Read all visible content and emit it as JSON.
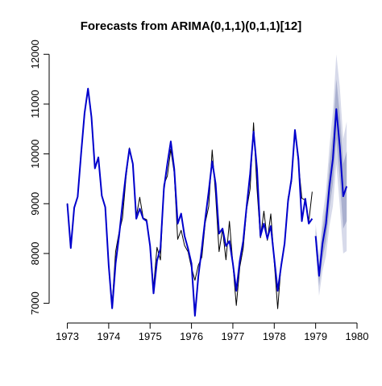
{
  "chart_data": {
    "type": "line",
    "title": "Forecasts from ARIMA(0,1,1)(0,1,1)[12]",
    "xlabel": "",
    "ylabel": "",
    "xlim": [
      1972.6,
      1980
    ],
    "ylim": [
      6750,
      12150
    ],
    "x_ticks": [
      1973,
      1974,
      1975,
      1976,
      1977,
      1978,
      1979,
      1980
    ],
    "y_ticks": [
      7000,
      8000,
      9000,
      10000,
      11000,
      12000
    ],
    "grid": false,
    "legend": "none",
    "series": [
      {
        "role": "observed",
        "color": "#000000",
        "start": 1973,
        "frequency": 12,
        "values": [
          9007,
          8106,
          8928,
          9137,
          10017,
          10826,
          11317,
          10744,
          9713,
          9938,
          9161,
          8927,
          7750,
          6981,
          8038,
          8422,
          8714,
          9512,
          10120,
          9823,
          8743,
          9129,
          8710,
          8680,
          8162,
          7306,
          8124,
          7870,
          9387,
          9556,
          10093,
          9620,
          8285,
          8466,
          8160,
          8034,
          7717,
          7461,
          7767,
          7925,
          8623,
          8945,
          10078,
          9179,
          8037,
          8488,
          7874,
          8647,
          7792,
          6957,
          7726,
          8106,
          8890,
          9299,
          10625,
          9302,
          8314,
          8850,
          8265,
          8796,
          7836,
          6892,
          7791,
          8192,
          9115,
          9434,
          10484,
          9827,
          9110,
          9070,
          8633,
          9240
        ]
      },
      {
        "role": "fitted",
        "color": "#0000cc",
        "start": 1973,
        "frequency": 12,
        "values": [
          9000,
          8110,
          8920,
          9140,
          10010,
          10820,
          11310,
          10740,
          9710,
          9930,
          9160,
          8930,
          7760,
          6900,
          7800,
          8350,
          9000,
          9600,
          10100,
          9800,
          8700,
          8900,
          8700,
          8650,
          8150,
          7200,
          7850,
          8100,
          9300,
          9800,
          10250,
          9700,
          8600,
          8800,
          8350,
          8100,
          7800,
          6750,
          7550,
          8100,
          8700,
          9250,
          9850,
          9400,
          8400,
          8500,
          8150,
          8250,
          7800,
          7250,
          7850,
          8250,
          8950,
          9600,
          10450,
          9700,
          8350,
          8600,
          8300,
          8550,
          7900,
          7250,
          7750,
          8200,
          9050,
          9500,
          10480,
          9900,
          8650,
          9100,
          8600,
          8700
        ]
      },
      {
        "role": "forecast",
        "color": "#0000cc",
        "start": 1979,
        "frequency": 12,
        "values": [
          8350,
          7550,
          8200,
          8600,
          9350,
          9900,
          10900,
          10150,
          9150,
          9350
        ]
      }
    ],
    "intervals": [
      {
        "level": "80%",
        "color": "#aab0cf",
        "lower": [
          8200,
          7350,
          7900,
          8250,
          8900,
          9400,
          10300,
          9500,
          8500,
          8650
        ],
        "upper": [
          8500,
          7750,
          8500,
          8950,
          9800,
          10400,
          11500,
          10800,
          9800,
          10050
        ]
      },
      {
        "level": "95%",
        "color": "#d7daea",
        "lower": [
          8100,
          7150,
          7650,
          7950,
          8550,
          8950,
          9800,
          8950,
          8000,
          8050
        ],
        "upper": [
          8600,
          7950,
          8750,
          9250,
          10150,
          10850,
          12000,
          11350,
          10300,
          10650
        ]
      }
    ]
  }
}
